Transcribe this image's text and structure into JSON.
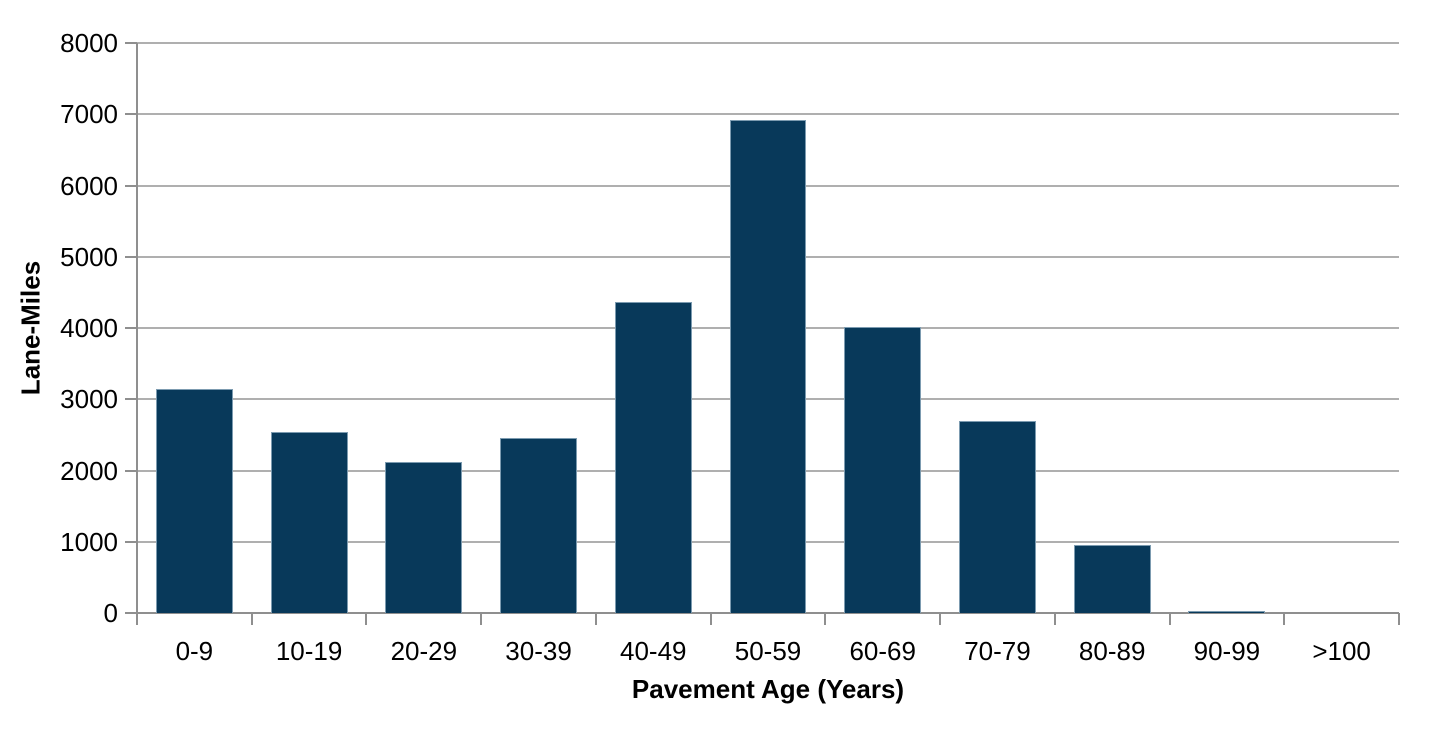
{
  "chart_data": {
    "type": "bar",
    "title": "",
    "xlabel": "Pavement Age (Years)",
    "ylabel": "Lane-Miles",
    "categories": [
      "0-9",
      "10-19",
      "20-29",
      "30-39",
      "40-49",
      "50-59",
      "60-69",
      "70-79",
      "80-89",
      "90-99",
      ">100"
    ],
    "values": [
      3140,
      2540,
      2120,
      2460,
      4370,
      6920,
      4020,
      2700,
      960,
      35,
      0
    ],
    "ylim": [
      0,
      8000
    ],
    "ytick_step": 1000,
    "yticks": [
      0,
      1000,
      2000,
      3000,
      4000,
      5000,
      6000,
      7000,
      8000
    ],
    "grid": "horizontal",
    "legend": "none",
    "colors": {
      "bar_fill": "#08395A",
      "bar_border": "#7C9BB0",
      "gridline": "#AFAFAF",
      "axis": "#8F8F8F",
      "text": "#000000",
      "background": "#FFFFFF"
    }
  }
}
